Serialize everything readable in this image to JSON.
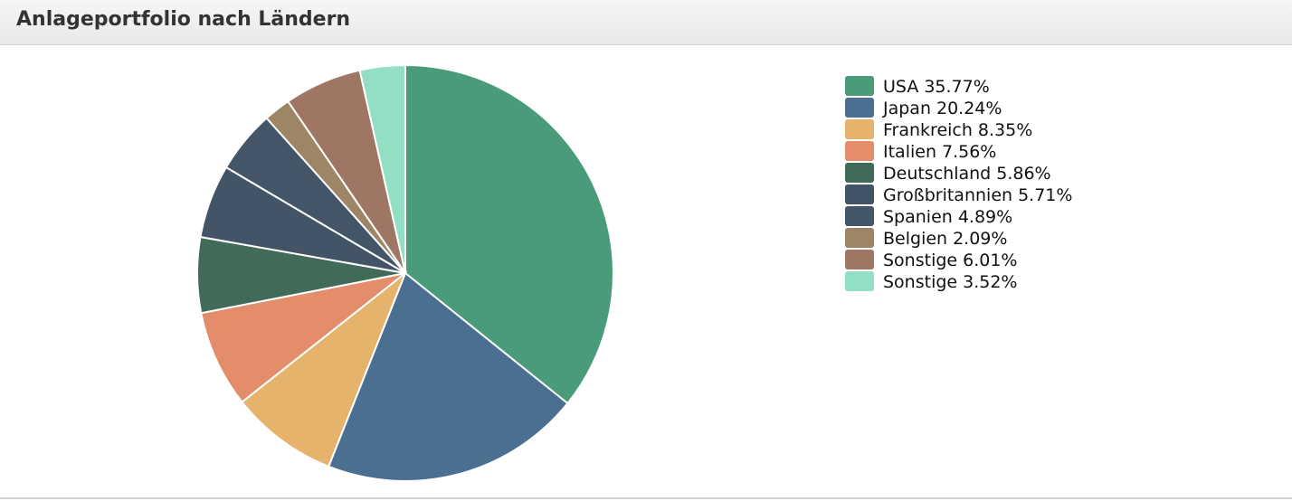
{
  "chart_data": {
    "type": "pie",
    "title": "Anlageportfolio nach Ländern",
    "categories": [
      "USA",
      "Japan",
      "Frankreich",
      "Italien",
      "Deutschland",
      "Großbritannien",
      "Spanien",
      "Belgien",
      "Sonstige",
      "Sonstige"
    ],
    "values": [
      35.77,
      20.24,
      8.35,
      7.56,
      5.86,
      5.71,
      4.89,
      2.09,
      6.01,
      3.52
    ],
    "value_labels": [
      "35.77%",
      "20.24%",
      "8.35%",
      "7.56%",
      "5.86%",
      "5.71%",
      "4.89%",
      "2.09%",
      "6.01%",
      "3.52%"
    ],
    "colors": [
      "#4a9b7a",
      "#4a6f91",
      "#e6b36d",
      "#e48d6b",
      "#426a58",
      "#435466",
      "#445568",
      "#9e8565",
      "#9e7663",
      "#93dfc4"
    ],
    "legend_position": "right"
  }
}
